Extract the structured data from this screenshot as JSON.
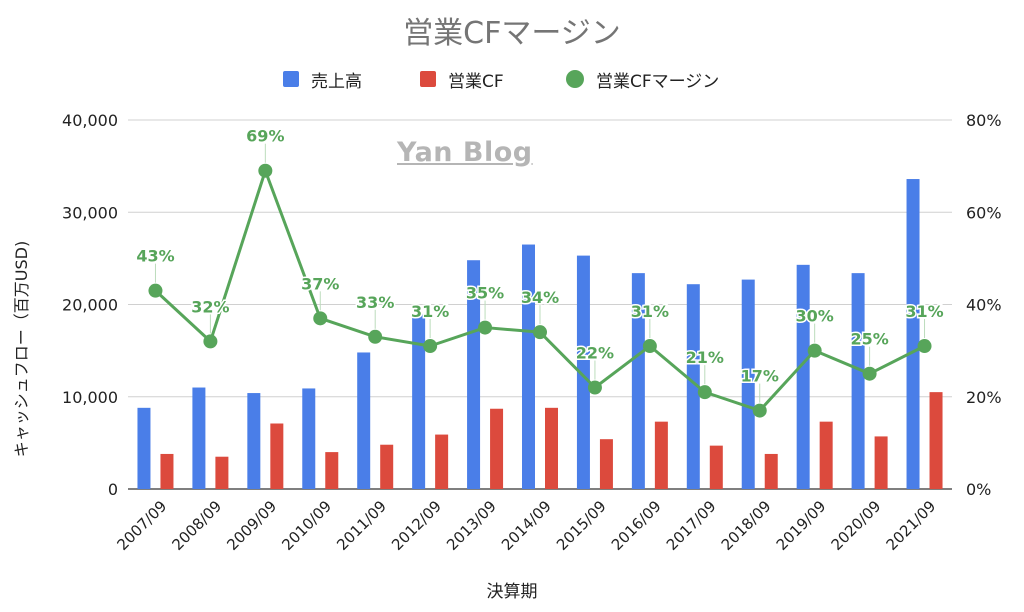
{
  "chart_data": {
    "type": "bar",
    "title": "営業CFマージン",
    "xlabel": "決算期",
    "ylabel": "キャッシュフロー（百万USD)",
    "watermark": "Yan Blog",
    "categories": [
      "2007/09",
      "2008/09",
      "2009/09",
      "2010/09",
      "2011/09",
      "2012/09",
      "2013/09",
      "2014/09",
      "2015/09",
      "2016/09",
      "2017/09",
      "2018/09",
      "2019/09",
      "2020/09",
      "2021/09"
    ],
    "series": [
      {
        "name": "売上高",
        "type": "bar",
        "axis": "left",
        "color": "#4a7ee8",
        "values": [
          8800,
          11000,
          10400,
          10900,
          14800,
          19000,
          24800,
          26500,
          25300,
          23400,
          22200,
          22700,
          24300,
          23400,
          33600
        ]
      },
      {
        "name": "営業CF",
        "type": "bar",
        "axis": "left",
        "color": "#dc4a3d",
        "values": [
          3800,
          3500,
          7100,
          4000,
          4800,
          5900,
          8700,
          8800,
          5400,
          7300,
          4700,
          3800,
          7300,
          5700,
          10500
        ]
      },
      {
        "name": "営業CFマージン",
        "type": "line",
        "axis": "right",
        "color": "#57a55a",
        "values": [
          43,
          32,
          69,
          37,
          33,
          31,
          35,
          34,
          22,
          31,
          21,
          17,
          30,
          25,
          31
        ],
        "labels": [
          "43%",
          "32%",
          "69%",
          "37%",
          "33%",
          "31%",
          "35%",
          "34%",
          "22%",
          "31%",
          "21%",
          "17%",
          "30%",
          "25%",
          "31%"
        ]
      }
    ],
    "y_left": {
      "ylim": [
        0,
        40000
      ],
      "ticks": [
        0,
        10000,
        20000,
        30000,
        40000
      ],
      "tick_labels": [
        "0",
        "10,000",
        "20,000",
        "30,000",
        "40,000"
      ]
    },
    "y_right": {
      "ylim": [
        0,
        80
      ],
      "ticks": [
        0,
        20,
        40,
        60,
        80
      ],
      "tick_labels": [
        "0%",
        "20%",
        "40%",
        "60%",
        "80%"
      ]
    },
    "grid": true,
    "legend": "top"
  }
}
